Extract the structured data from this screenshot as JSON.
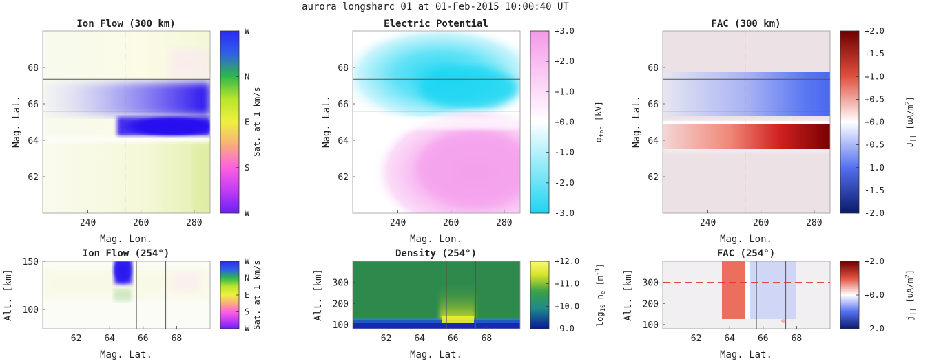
{
  "figure": {
    "title": "aurora_longsharc_01 at 01-Feb-2015 10:00:40 UT"
  },
  "chart_data": [
    {
      "type": "heatmap",
      "id": "ion-flow-map",
      "title": "Ion Flow (300 km)",
      "xlabel": "Mag. Lon.",
      "ylabel": "Mag. Lat.",
      "xlim": [
        223,
        286
      ],
      "ylim": [
        60,
        70
      ],
      "xticks": [
        240,
        260,
        280
      ],
      "yticks": [
        62,
        64,
        66,
        68
      ],
      "colorbar": {
        "label": "Sat. at 1 km/s",
        "ticks": [
          "W",
          "N",
          "E",
          "S",
          "W"
        ]
      },
      "overlays": {
        "vline_x": 254,
        "hlines_y": [
          67.35,
          65.6
        ]
      }
    },
    {
      "type": "heatmap",
      "id": "potential-map",
      "title": "Electric Potential",
      "xlabel": "Mag. Lon.",
      "ylabel": "Mag. Lat.",
      "xlim": [
        223,
        286
      ],
      "ylim": [
        60,
        70
      ],
      "xticks": [
        240,
        260,
        280
      ],
      "yticks": [
        62,
        64,
        66,
        68
      ],
      "colorbar": {
        "label": "φtop [kV]",
        "label_base": "φ",
        "label_sub": "top",
        "label_unit": " [kV]",
        "ticks": [
          "+3.0",
          "+2.0",
          "+1.0",
          "+0.0",
          "-1.0",
          "-2.0",
          "-3.0"
        ],
        "range": [
          -3,
          3
        ]
      },
      "overlays": {
        "hlines_y": [
          67.35,
          65.6
        ]
      }
    },
    {
      "type": "heatmap",
      "id": "fac-map",
      "title": "FAC (300 km)",
      "xlabel": "Mag. Lon.",
      "ylabel": "Mag. Lat.",
      "xlim": [
        223,
        286
      ],
      "ylim": [
        60,
        70
      ],
      "xticks": [
        240,
        260,
        280
      ],
      "yticks": [
        62,
        64,
        66,
        68
      ],
      "colorbar": {
        "label": "J|| [uA/m2]",
        "label_base": "J",
        "label_sub": "||",
        "label_unit": " [uA/m",
        "label_sup": "2",
        "label_end": "]",
        "ticks": [
          "+2.0",
          "+1.5",
          "+1.0",
          "+0.5",
          "+0.0",
          "-0.5",
          "-1.0",
          "-1.5",
          "-2.0"
        ],
        "range": [
          -2,
          2
        ]
      },
      "overlays": {
        "vline_x": 254,
        "hlines_y": [
          67.35,
          65.6
        ]
      }
    },
    {
      "type": "heatmap",
      "id": "ion-flow-alt",
      "title": "Ion Flow (254°)",
      "xlabel": "Mag. Lat.",
      "ylabel": "Alt. [km]",
      "xlim": [
        60,
        70
      ],
      "ylim": [
        80,
        150
      ],
      "xticks": [
        62,
        64,
        66,
        68
      ],
      "yticks": [
        100,
        150
      ],
      "colorbar": {
        "label": "Sat. at 1 km/s",
        "ticks": [
          "W",
          "N",
          "E",
          "S",
          "W"
        ]
      },
      "overlays": {
        "vlines_x": [
          65.6,
          67.35
        ]
      }
    },
    {
      "type": "heatmap",
      "id": "density-alt",
      "title": "Density (254°)",
      "xlabel": "Mag. Lat.",
      "ylabel": "Alt. [km]",
      "xlim": [
        60,
        70
      ],
      "ylim": [
        80,
        400
      ],
      "xticks": [
        62,
        64,
        66,
        68
      ],
      "yticks": [
        100,
        200,
        300
      ],
      "colorbar": {
        "label": "log10 ne [m-3]",
        "label_base": "log",
        "label_sub": "10",
        "label_mid": " n",
        "label_sub2": "e",
        "label_unit": " [m",
        "label_sup": "-3",
        "label_end": "]",
        "ticks": [
          "+12.0",
          "+11.0",
          "+10.0",
          "+9.0"
        ],
        "range": [
          9,
          12
        ]
      },
      "overlays": {
        "vlines_x": [
          65.6,
          67.35
        ]
      }
    },
    {
      "type": "heatmap",
      "id": "fac-alt",
      "title": "FAC (254°)",
      "xlabel": "Mag. Lat.",
      "ylabel": "Alt. [km]",
      "xlim": [
        60,
        70
      ],
      "ylim": [
        80,
        400
      ],
      "xticks": [
        62,
        64,
        66,
        68
      ],
      "yticks": [
        100,
        200,
        300
      ],
      "colorbar": {
        "label": "j|| [uA/m2]",
        "label_base": "j",
        "label_sub": "||",
        "label_unit": " [uA/m",
        "label_sup": "2",
        "label_end": "]",
        "ticks": [
          "+2.0",
          "+0.0",
          "-2.0"
        ],
        "range": [
          -2,
          2
        ]
      },
      "overlays": {
        "vlines_x": [
          65.6,
          67.35
        ],
        "hline_y": 300
      }
    }
  ],
  "colors": {
    "line_red": "#e03030",
    "line_gray": "#555555",
    "flow_blue": "#2a10f0",
    "potential_cyan": "#1fd6f2",
    "potential_pink": "#f6a0ee",
    "fac_red": "#c81818",
    "fac_blue": "#4060f0",
    "density_green": "#2a8a4a",
    "density_yellow": "#f0f020",
    "density_blue": "#1838c8"
  }
}
